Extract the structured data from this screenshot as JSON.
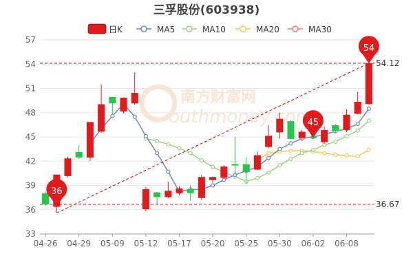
{
  "chart_data": {
    "type": "candlestick",
    "title": "三孚股份(603938)",
    "ylim": [
      33,
      57
    ],
    "yticks": [
      33,
      36,
      39,
      42,
      45,
      48,
      51,
      54,
      57
    ],
    "x_tick_labels": [
      {
        "i": 0,
        "label": "04-26"
      },
      {
        "i": 3,
        "label": "04-29"
      },
      {
        "i": 6,
        "label": "05-09"
      },
      {
        "i": 9,
        "label": "05-12"
      },
      {
        "i": 12,
        "label": "05-17"
      },
      {
        "i": 15,
        "label": "05-20"
      },
      {
        "i": 18,
        "label": "05-25"
      },
      {
        "i": 21,
        "label": "05-30"
      },
      {
        "i": 24,
        "label": "06-02"
      },
      {
        "i": 27,
        "label": "06-08"
      }
    ],
    "legend": [
      {
        "label": "日K",
        "color": "#e31a1c",
        "kind": "box"
      },
      {
        "label": "MA5",
        "color": "#6f86c8",
        "kind": "ring"
      },
      {
        "label": "MA10",
        "color": "#9fd37f",
        "kind": "ring"
      },
      {
        "label": "MA20",
        "color": "#f5c85a",
        "kind": "ring"
      },
      {
        "label": "MA30",
        "color": "#f07b7b",
        "kind": "ring"
      }
    ],
    "colors": {
      "up": "#e31a1c",
      "down": "#25c64a",
      "grid": "#e6e6e6",
      "axis_text": "#666666",
      "annotation": "#cc0000"
    },
    "candles": [
      {
        "o": 38.0,
        "c": 36.7,
        "h": 38.3,
        "l": 36.5
      },
      {
        "o": 36.4,
        "c": 40.3,
        "h": 40.3,
        "l": 35.6
      },
      {
        "o": 40.2,
        "c": 42.3,
        "h": 42.6,
        "l": 40.0
      },
      {
        "o": 43.1,
        "c": 42.5,
        "h": 44.0,
        "l": 42.3
      },
      {
        "o": 42.5,
        "c": 46.8,
        "h": 46.8,
        "l": 42.0
      },
      {
        "o": 45.7,
        "c": 49.0,
        "h": 51.5,
        "l": 45.5
      },
      {
        "o": 49.9,
        "c": 49.2,
        "h": 50.0,
        "l": 47.8
      },
      {
        "o": 48.2,
        "c": 49.8,
        "h": 49.9,
        "l": 47.9
      },
      {
        "o": 49.2,
        "c": 50.4,
        "h": 53.0,
        "l": 49.0
      },
      {
        "o": 36.1,
        "c": 38.5,
        "h": 38.8,
        "l": 35.8
      },
      {
        "o": 38.1,
        "c": 37.6,
        "h": 38.2,
        "l": 36.7
      },
      {
        "o": 37.6,
        "c": 38.3,
        "h": 39.5,
        "l": 37.4
      },
      {
        "o": 38.1,
        "c": 38.6,
        "h": 38.9,
        "l": 37.8
      },
      {
        "o": 38.5,
        "c": 38.1,
        "h": 39.0,
        "l": 37.1
      },
      {
        "o": 37.5,
        "c": 40.0,
        "h": 40.3,
        "l": 37.2
      },
      {
        "o": 39.7,
        "c": 40.0,
        "h": 40.1,
        "l": 39.3
      },
      {
        "o": 40.0,
        "c": 41.3,
        "h": 41.5,
        "l": 39.8
      },
      {
        "o": 41.6,
        "c": 41.5,
        "h": 45.0,
        "l": 40.2
      },
      {
        "o": 41.6,
        "c": 40.7,
        "h": 42.5,
        "l": 39.2
      },
      {
        "o": 41.0,
        "c": 42.7,
        "h": 43.2,
        "l": 40.9
      },
      {
        "o": 43.8,
        "c": 45.1,
        "h": 46.5,
        "l": 43.6
      },
      {
        "o": 45.6,
        "c": 47.2,
        "h": 48.0,
        "l": 44.8
      },
      {
        "o": 46.9,
        "c": 44.8,
        "h": 47.1,
        "l": 44.7
      },
      {
        "o": 44.9,
        "c": 45.6,
        "h": 45.9,
        "l": 44.6
      },
      {
        "o": 45.0,
        "c": 44.9,
        "h": 45.1,
        "l": 44.7
      },
      {
        "o": 44.4,
        "c": 45.8,
        "h": 46.3,
        "l": 44.2
      },
      {
        "o": 46.4,
        "c": 45.8,
        "h": 46.6,
        "l": 45.5
      },
      {
        "o": 45.9,
        "c": 47.7,
        "h": 48.4,
        "l": 45.6
      },
      {
        "o": 47.9,
        "c": 49.3,
        "h": 50.6,
        "l": 47.8
      },
      {
        "o": 49.1,
        "c": 54.1,
        "h": 54.2,
        "l": 49.0
      }
    ],
    "ma5": [
      null,
      null,
      null,
      null,
      44.2,
      46.0,
      47.6,
      49.1,
      47.5,
      45.1,
      43.0,
      40.7,
      38.2,
      38.5,
      38.5,
      39.0,
      39.7,
      40.3,
      40.8,
      41.3,
      42.4,
      43.5,
      44.2,
      44.8,
      45.0,
      45.3,
      45.7,
      46.0,
      46.6,
      48.5
    ],
    "ma10": [
      null,
      null,
      null,
      null,
      null,
      null,
      null,
      null,
      null,
      44.8,
      44.5,
      44.1,
      43.6,
      43.0,
      42.1,
      41.3,
      40.6,
      40.1,
      39.5,
      39.9,
      40.6,
      41.5,
      42.3,
      43.0,
      43.4,
      44.0,
      44.4,
      45.1,
      45.8,
      47.0
    ],
    "ma20": [
      null,
      null,
      null,
      null,
      null,
      null,
      null,
      null,
      null,
      null,
      null,
      null,
      null,
      null,
      null,
      null,
      null,
      null,
      null,
      42.1,
      43.0,
      43.2,
      43.3,
      43.3,
      43.2,
      43.0,
      42.8,
      42.7,
      42.6,
      43.4
    ],
    "ma30": [],
    "hlines": [
      {
        "y": 54.12,
        "label": "54.12"
      },
      {
        "y": 36.67,
        "label": "36.67"
      }
    ],
    "trendline": {
      "from": {
        "i": 1,
        "y": 35.6
      },
      "to": {
        "i": 29,
        "y": 54.12
      }
    },
    "markers": [
      {
        "i": 1,
        "y": 36.4,
        "label": "36"
      },
      {
        "i": 24,
        "y": 44.9,
        "label": "45"
      },
      {
        "i": 29,
        "y": 54.1,
        "label": "54"
      }
    ],
    "watermark": {
      "text_cn": "南方财富网",
      "text_en": "outhmoney.com"
    }
  }
}
